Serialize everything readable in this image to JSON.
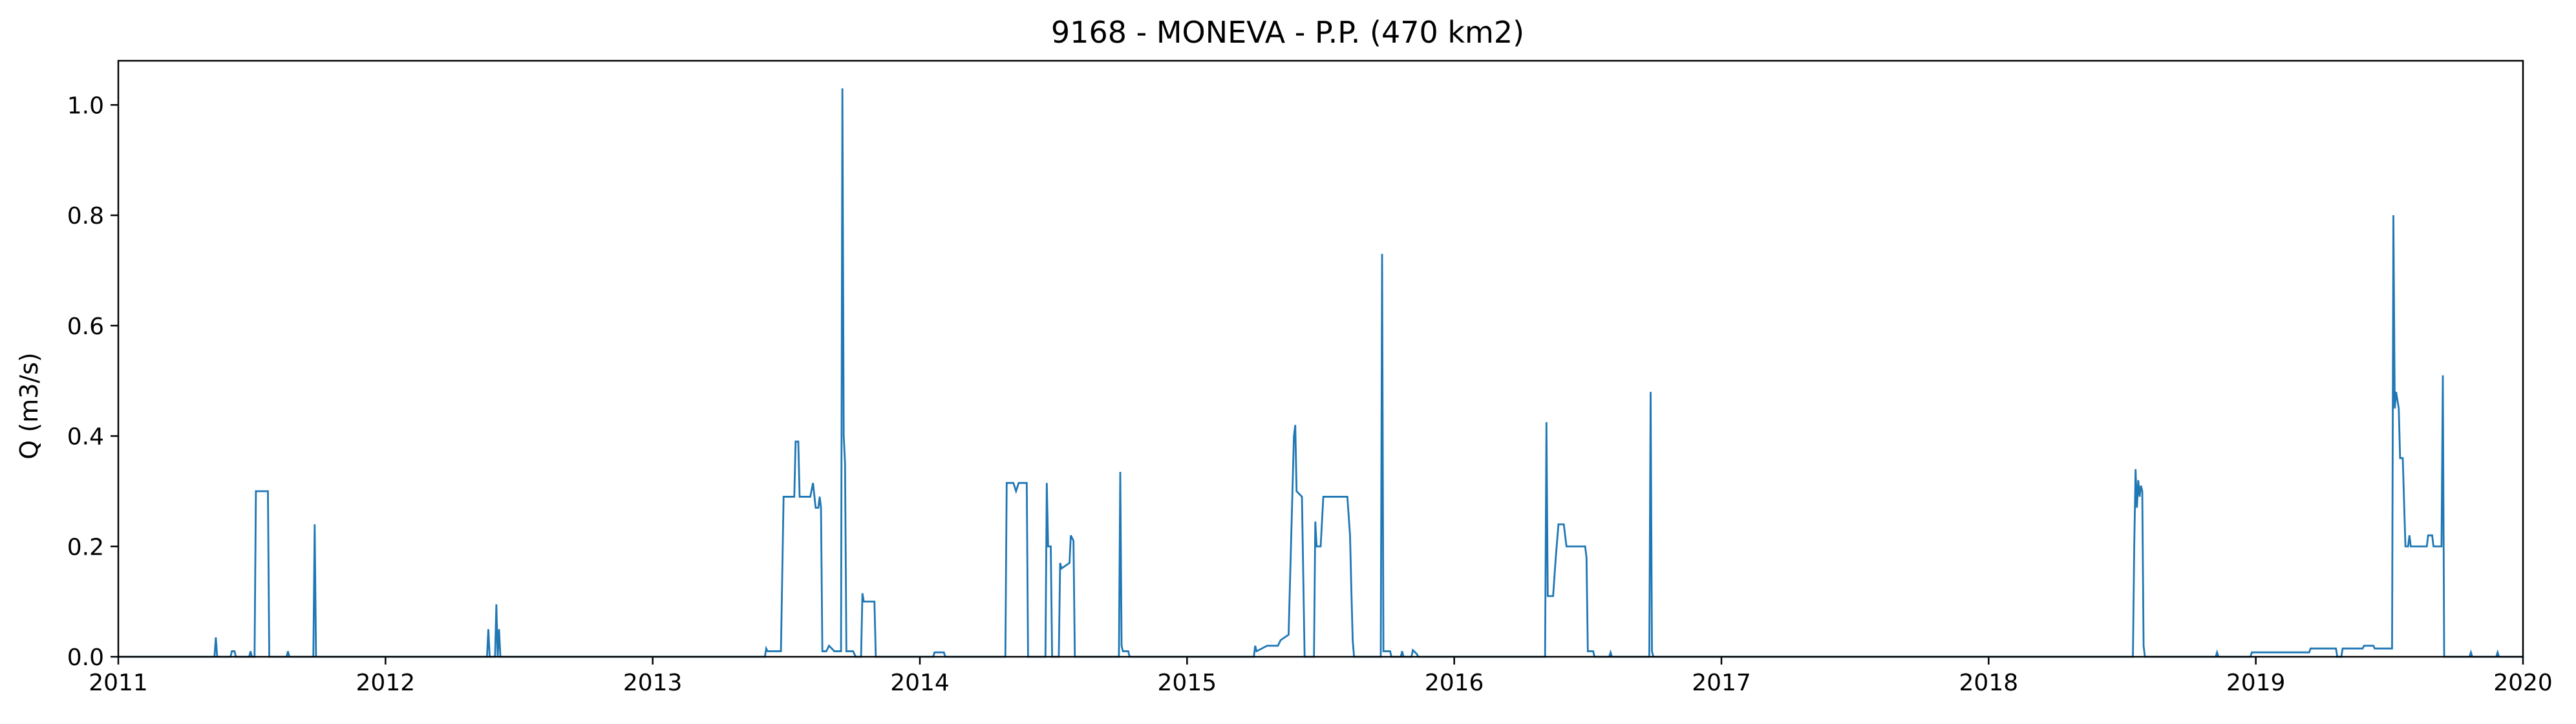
{
  "chart_data": {
    "type": "line",
    "title": "9168 - MONEVA - P.P. (470 km2)",
    "xlabel": "",
    "ylabel": "Q (m3/s)",
    "xlim": [
      2011,
      2020
    ],
    "ylim": [
      0,
      1.08
    ],
    "x_ticks": [
      2011,
      2012,
      2013,
      2014,
      2015,
      2016,
      2017,
      2018,
      2019,
      2020
    ],
    "y_ticks": [
      "0.0",
      "0.2",
      "0.4",
      "0.6",
      "0.8",
      "1.0"
    ],
    "grid": false,
    "line_color": "#1f77b4",
    "series": [
      {
        "name": "",
        "points": [
          [
            2011.0,
            0
          ],
          [
            2011.36,
            0
          ],
          [
            2011.365,
            0.035
          ],
          [
            2011.37,
            0
          ],
          [
            2011.42,
            0
          ],
          [
            2011.425,
            0.01
          ],
          [
            2011.435,
            0.01
          ],
          [
            2011.44,
            0
          ],
          [
            2011.49,
            0
          ],
          [
            2011.495,
            0.01
          ],
          [
            2011.5,
            0
          ],
          [
            2011.51,
            0
          ],
          [
            2011.515,
            0.3
          ],
          [
            2011.56,
            0.3
          ],
          [
            2011.565,
            0
          ],
          [
            2011.63,
            0
          ],
          [
            2011.635,
            0.01
          ],
          [
            2011.64,
            0
          ],
          [
            2011.73,
            0
          ],
          [
            2011.735,
            0.24
          ],
          [
            2011.74,
            0
          ],
          [
            2012.38,
            0
          ],
          [
            2012.385,
            0.05
          ],
          [
            2012.39,
            0
          ],
          [
            2012.41,
            0
          ],
          [
            2012.415,
            0.095
          ],
          [
            2012.42,
            0
          ],
          [
            2012.425,
            0.05
          ],
          [
            2012.43,
            0
          ],
          [
            2013.42,
            0
          ],
          [
            2013.425,
            0.015
          ],
          [
            2013.43,
            0.01
          ],
          [
            2013.48,
            0.01
          ],
          [
            2013.49,
            0.29
          ],
          [
            2013.53,
            0.29
          ],
          [
            2013.535,
            0.39
          ],
          [
            2013.545,
            0.39
          ],
          [
            2013.55,
            0.29
          ],
          [
            2013.59,
            0.29
          ],
          [
            2013.6,
            0.315
          ],
          [
            2013.61,
            0.27
          ],
          [
            2013.62,
            0.27
          ],
          [
            2013.625,
            0.29
          ],
          [
            2013.63,
            0.27
          ],
          [
            2013.635,
            0.01
          ],
          [
            2013.65,
            0.01
          ],
          [
            2013.66,
            0.02
          ],
          [
            2013.68,
            0.01
          ],
          [
            2013.705,
            0.01
          ],
          [
            2013.71,
            1.03
          ],
          [
            2013.715,
            0.4
          ],
          [
            2013.72,
            0.35
          ],
          [
            2013.725,
            0.01
          ],
          [
            2013.75,
            0.01
          ],
          [
            2013.76,
            0
          ],
          [
            2013.78,
            0
          ],
          [
            2013.785,
            0.115
          ],
          [
            2013.79,
            0.1
          ],
          [
            2013.83,
            0.1
          ],
          [
            2013.835,
            0
          ],
          [
            2014.05,
            0
          ],
          [
            2014.055,
            0.008
          ],
          [
            2014.09,
            0.008
          ],
          [
            2014.095,
            0
          ],
          [
            2014.32,
            0
          ],
          [
            2014.325,
            0.315
          ],
          [
            2014.35,
            0.315
          ],
          [
            2014.36,
            0.3
          ],
          [
            2014.37,
            0.315
          ],
          [
            2014.4,
            0.315
          ],
          [
            2014.405,
            0
          ],
          [
            2014.47,
            0
          ],
          [
            2014.475,
            0.315
          ],
          [
            2014.48,
            0.2
          ],
          [
            2014.49,
            0.2
          ],
          [
            2014.495,
            0
          ],
          [
            2014.52,
            0
          ],
          [
            2014.525,
            0.17
          ],
          [
            2014.53,
            0.16
          ],
          [
            2014.56,
            0.17
          ],
          [
            2014.565,
            0.22
          ],
          [
            2014.575,
            0.21
          ],
          [
            2014.58,
            0
          ],
          [
            2014.745,
            0
          ],
          [
            2014.75,
            0.335
          ],
          [
            2014.755,
            0.02
          ],
          [
            2014.76,
            0.01
          ],
          [
            2014.78,
            0.01
          ],
          [
            2014.785,
            0
          ],
          [
            2015.25,
            0
          ],
          [
            2015.255,
            0.02
          ],
          [
            2015.26,
            0.01
          ],
          [
            2015.3,
            0.02
          ],
          [
            2015.34,
            0.02
          ],
          [
            2015.35,
            0.03
          ],
          [
            2015.38,
            0.04
          ],
          [
            2015.4,
            0.4
          ],
          [
            2015.405,
            0.42
          ],
          [
            2015.41,
            0.3
          ],
          [
            2015.43,
            0.29
          ],
          [
            2015.44,
            0
          ],
          [
            2015.475,
            0
          ],
          [
            2015.48,
            0.245
          ],
          [
            2015.485,
            0.2
          ],
          [
            2015.5,
            0.2
          ],
          [
            2015.51,
            0.29
          ],
          [
            2015.6,
            0.29
          ],
          [
            2015.61,
            0.22
          ],
          [
            2015.615,
            0.12
          ],
          [
            2015.62,
            0.03
          ],
          [
            2015.625,
            0
          ],
          [
            2015.725,
            0
          ],
          [
            2015.73,
            0.73
          ],
          [
            2015.735,
            0.01
          ],
          [
            2015.76,
            0.01
          ],
          [
            2015.765,
            0
          ],
          [
            2015.8,
            0
          ],
          [
            2015.805,
            0.01
          ],
          [
            2015.81,
            0
          ],
          [
            2015.84,
            0
          ],
          [
            2015.845,
            0.012
          ],
          [
            2015.86,
            0.005
          ],
          [
            2015.865,
            0
          ],
          [
            2016.34,
            0
          ],
          [
            2016.345,
            0.425
          ],
          [
            2016.35,
            0.11
          ],
          [
            2016.37,
            0.11
          ],
          [
            2016.38,
            0.18
          ],
          [
            2016.39,
            0.24
          ],
          [
            2016.41,
            0.24
          ],
          [
            2016.42,
            0.2
          ],
          [
            2016.49,
            0.2
          ],
          [
            2016.495,
            0.18
          ],
          [
            2016.5,
            0.01
          ],
          [
            2016.52,
            0.01
          ],
          [
            2016.525,
            0
          ],
          [
            2016.58,
            0
          ],
          [
            2016.585,
            0.008
          ],
          [
            2016.59,
            0
          ],
          [
            2016.73,
            0
          ],
          [
            2016.735,
            0.48
          ],
          [
            2016.74,
            0.01
          ],
          [
            2016.745,
            0
          ],
          [
            2018.54,
            0
          ],
          [
            2018.545,
            0.2
          ],
          [
            2018.55,
            0.34
          ],
          [
            2018.555,
            0.27
          ],
          [
            2018.56,
            0.32
          ],
          [
            2018.565,
            0.29
          ],
          [
            2018.57,
            0.31
          ],
          [
            2018.575,
            0.3
          ],
          [
            2018.58,
            0.02
          ],
          [
            2018.585,
            0
          ],
          [
            2018.85,
            0
          ],
          [
            2018.855,
            0.008
          ],
          [
            2018.86,
            0
          ],
          [
            2018.98,
            0
          ],
          [
            2018.985,
            0.008
          ],
          [
            2019.2,
            0.008
          ],
          [
            2019.205,
            0.015
          ],
          [
            2019.3,
            0.015
          ],
          [
            2019.305,
            0
          ],
          [
            2019.32,
            0
          ],
          [
            2019.325,
            0.015
          ],
          [
            2019.4,
            0.015
          ],
          [
            2019.405,
            0.02
          ],
          [
            2019.44,
            0.02
          ],
          [
            2019.445,
            0.015
          ],
          [
            2019.51,
            0.015
          ],
          [
            2019.515,
            0.8
          ],
          [
            2019.52,
            0.45
          ],
          [
            2019.525,
            0.48
          ],
          [
            2019.535,
            0.45
          ],
          [
            2019.54,
            0.36
          ],
          [
            2019.55,
            0.36
          ],
          [
            2019.56,
            0.2
          ],
          [
            2019.57,
            0.2
          ],
          [
            2019.575,
            0.22
          ],
          [
            2019.58,
            0.2
          ],
          [
            2019.64,
            0.2
          ],
          [
            2019.645,
            0.22
          ],
          [
            2019.66,
            0.22
          ],
          [
            2019.665,
            0.2
          ],
          [
            2019.695,
            0.2
          ],
          [
            2019.7,
            0.51
          ],
          [
            2019.705,
            0
          ],
          [
            2019.8,
            0
          ],
          [
            2019.805,
            0.008
          ],
          [
            2019.81,
            0
          ],
          [
            2019.9,
            0
          ],
          [
            2019.905,
            0.008
          ],
          [
            2019.91,
            0
          ],
          [
            2020.0,
            0
          ]
        ]
      }
    ]
  }
}
